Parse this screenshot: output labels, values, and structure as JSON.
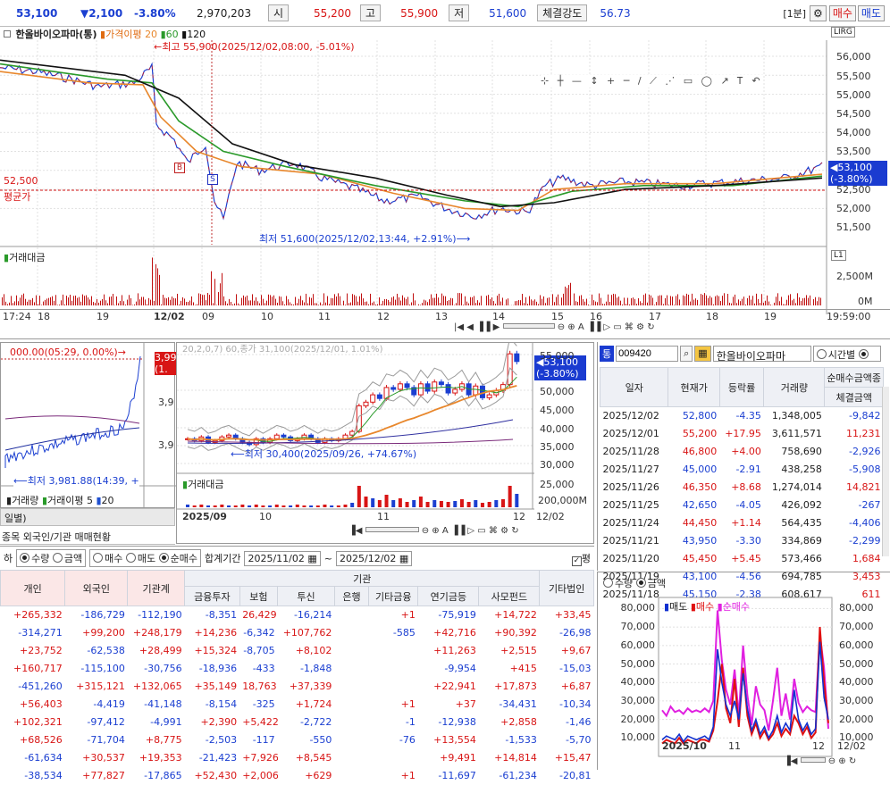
{
  "topbar": {
    "price": "53,100",
    "change": "▼2,100",
    "change_pct": "-3.80%",
    "volume": "2,970,203",
    "open_label": "시",
    "open": "55,200",
    "high_label": "고",
    "high": "55,900",
    "low_label": "저",
    "low": "51,600",
    "strength_label": "체결강도",
    "strength": "56.73",
    "interval": "[1분]",
    "buy_label": "매수",
    "sell_label": "매도"
  },
  "main_chart": {
    "legend_name": "한올바이오파마(통)",
    "legend_ma_label": "가격이평",
    "legend_ma": [
      "20",
      "60",
      "120"
    ],
    "legend_colors": [
      "#e8872c",
      "#2a9a2a",
      "#111111"
    ],
    "high_annot": "최고 55,900(2025/12/02,08:00, -5.01%)",
    "low_annot": "최저 51,600(2025/12/02,13:44, +2.91%)",
    "avg_price": "52,500",
    "avg_label": "평균가",
    "current_tag_price": "53,100",
    "current_tag_pct": "(-3.80%)",
    "y_ticks": [
      "56,000",
      "55,500",
      "55,000",
      "54,500",
      "54,000",
      "53,500",
      "52,500",
      "52,000",
      "51,500"
    ],
    "buy_marker": "B",
    "sell_marker": "S",
    "corner_tag": "LIRG"
  },
  "volume_chart": {
    "label": "거래대금",
    "y_ticks": [
      "2,500M",
      "0M"
    ],
    "corner_tag": "L1"
  },
  "time_axis": {
    "labels": [
      "17:24",
      "18",
      "19",
      "12/02",
      "09",
      "10",
      "11",
      "12",
      "13",
      "14",
      "15",
      "16",
      "17",
      "18",
      "19",
      "19:59:00"
    ]
  },
  "toolbar_icons": [
    "pointer-icon",
    "crosshair-icon",
    "horizontal-line-icon",
    "vertical-line-icon",
    "plus-icon",
    "minus-icon",
    "trend-line-icon",
    "fibonacci-icon",
    "channel-icon",
    "rectangle-icon",
    "ellipse-icon",
    "arrow-icon",
    "text-icon",
    "undo-icon"
  ],
  "index_chart": {
    "high_annot": "000.00(05:29, 0.00%)",
    "low_annot": "최저 3,981.88(14:39, +",
    "tag_top": "3,99",
    "tag_sub": "(1.",
    "y_ticks": [
      "3,9",
      "3,9"
    ],
    "vol_label": "거래량",
    "vol_ma_label": "거래이평",
    "vol_ma": [
      "5",
      "20"
    ],
    "tab_label": "일별)",
    "sub_tab": "종목 외국인/기관 매매현황"
  },
  "daily_chart": {
    "header_text": "20,2,0,7) 60,종가 31,100(2025/12/01, 1.01%)",
    "low_annot": "최저 30,400(2025/09/26, +74.67%)",
    "tag_price": "53,100",
    "tag_pct": "(-3.80%)",
    "y_ticks": [
      "55,000",
      "50,000",
      "45,000",
      "40,000",
      "35,000",
      "30,000",
      "25,000"
    ],
    "vol_label": "거래대금",
    "vol_tick": "200,000M",
    "x_labels": [
      "2025/09",
      "10",
      "11",
      "12",
      "12/02"
    ],
    "candle_closes": [
      32000,
      31500,
      32500,
      31000,
      31500,
      32500,
      33000,
      32000,
      31000,
      30400,
      32000,
      31000,
      32000,
      33000,
      32500,
      31500,
      32000,
      33000,
      32000,
      31000,
      32000,
      31500,
      32000,
      33000,
      34000,
      41000,
      42000,
      44000,
      43000,
      46000,
      45500,
      47000,
      46000,
      44000,
      47000,
      45000,
      47500,
      46800,
      44500,
      45500,
      47000,
      44000,
      46400,
      43200,
      44000,
      45200,
      46800,
      55200,
      53100
    ],
    "volume_heights": [
      3,
      2,
      3,
      2,
      2,
      3,
      2,
      2,
      3,
      2,
      3,
      2,
      2,
      3,
      2,
      2,
      3,
      2,
      2,
      2,
      3,
      2,
      2,
      3,
      5,
      24,
      12,
      10,
      8,
      14,
      8,
      10,
      6,
      8,
      12,
      6,
      8,
      7,
      6,
      7,
      9,
      6,
      8,
      5,
      6,
      8,
      9,
      24,
      15
    ]
  },
  "quote_panel": {
    "code": "009420",
    "name": "한올바이오파마",
    "radio_time": "시간별",
    "columns": [
      "일자",
      "현재가",
      "등락률",
      "거래량",
      "순매수",
      "금액종"
    ],
    "sub_column": "체결금액",
    "rows": [
      [
        "2025/12/02",
        "52,800",
        "-4.35",
        "1,348,005",
        "-9,842"
      ],
      [
        "2025/12/01",
        "55,200",
        "+17.95",
        "3,611,571",
        "11,231"
      ],
      [
        "2025/11/28",
        "46,800",
        "+4.00",
        "758,690",
        "-2,926"
      ],
      [
        "2025/11/27",
        "45,000",
        "-2.91",
        "438,258",
        "-5,908"
      ],
      [
        "2025/11/26",
        "46,350",
        "+8.68",
        "1,274,014",
        "14,821"
      ],
      [
        "2025/11/25",
        "42,650",
        "-4.05",
        "426,092",
        "-267"
      ],
      [
        "2025/11/24",
        "44,450",
        "+1.14",
        "564,435",
        "-4,406"
      ],
      [
        "2025/11/21",
        "43,950",
        "-3.30",
        "334,869",
        "-2,299"
      ],
      [
        "2025/11/20",
        "45,450",
        "+5.45",
        "573,466",
        "1,684"
      ],
      [
        "2025/11/19",
        "43,100",
        "-4.56",
        "694,785",
        "3,453"
      ],
      [
        "2025/11/18",
        "45,150",
        "-2.38",
        "608,617",
        "611"
      ]
    ]
  },
  "flow_chart": {
    "radio_qty": "수량",
    "radio_amt": "금액",
    "legend": [
      "매도",
      "매수",
      "순매수"
    ],
    "legend_colors": [
      "#1030d0",
      "#e01010",
      "#e020e0"
    ],
    "y_ticks": [
      "80,000",
      "70,000",
      "60,000",
      "50,000",
      "40,000",
      "30,000",
      "20,000",
      "10,000"
    ],
    "x_labels": [
      "2025/10",
      "11",
      "12",
      "12/02"
    ],
    "sell_series": [
      9000,
      11000,
      10000,
      9000,
      12000,
      8000,
      11000,
      10000,
      9000,
      10000,
      11000,
      9000,
      16000,
      58000,
      40000,
      28000,
      22000,
      30000,
      20000,
      45000,
      26000,
      14000,
      20000,
      12000,
      16000,
      10000,
      14000,
      22000,
      13000,
      18000,
      14000,
      36000,
      20000,
      14000,
      18000,
      12000,
      15000,
      62000,
      32000,
      20000
    ],
    "buy_series": [
      7000,
      9000,
      8000,
      7000,
      10000,
      7000,
      9000,
      8000,
      7000,
      9000,
      9000,
      8000,
      14000,
      30000,
      50000,
      26000,
      18000,
      42000,
      16000,
      48000,
      22000,
      12000,
      18000,
      10000,
      14000,
      9000,
      12000,
      18000,
      11000,
      15000,
      12000,
      22000,
      18000,
      12000,
      16000,
      10000,
      13000,
      70000,
      40000,
      18000
    ],
    "net_series": [
      25000,
      22000,
      27000,
      24000,
      25000,
      23000,
      26000,
      24000,
      25000,
      24000,
      26000,
      24000,
      30000,
      79000,
      52000,
      36000,
      28000,
      47000,
      22000,
      60000,
      33000,
      17000,
      38000,
      28000,
      25000,
      14000,
      30000,
      48000,
      22000,
      34000,
      20000,
      42000,
      29000,
      24000,
      27000,
      25000,
      24000,
      66000,
      48000,
      15000
    ]
  },
  "investor_table": {
    "controls": {
      "radio1": "수량",
      "radio2": "금액",
      "radio3": "매수",
      "radio4": "매도",
      "radio5": "순매수",
      "period_label": "합계기간",
      "date_from": "2025/11/02",
      "tilde": "~",
      "date_to": "2025/12/02",
      "check_label": "평"
    },
    "group_header": "기관",
    "columns": [
      "개인",
      "외국인",
      "기관계",
      "금융투자",
      "보험",
      "투신",
      "은행",
      "기타금융",
      "연기금등",
      "사모펀드",
      "기타법인"
    ],
    "rows": [
      [
        "+265,332",
        "-186,729",
        "-112,190",
        "-8,351",
        "26,429",
        "-16,214",
        "",
        "+1",
        "-75,919",
        "+14,722",
        "+33,45"
      ],
      [
        "-314,271",
        "+99,200",
        "+248,179",
        "+14,236",
        "-6,342",
        "+107,762",
        "",
        "-585",
        "+42,716",
        "+90,392",
        "-26,98"
      ],
      [
        "+23,752",
        "-62,538",
        "+28,499",
        "+15,324",
        "-8,705",
        "+8,102",
        "",
        "",
        "+11,263",
        "+2,515",
        "+9,67"
      ],
      [
        "+160,717",
        "-115,100",
        "-30,756",
        "-18,936",
        "-433",
        "-1,848",
        "",
        "",
        "-9,954",
        "+415",
        "-15,03"
      ],
      [
        "-451,260",
        "+315,121",
        "+132,065",
        "+35,149",
        "18,763",
        "+37,339",
        "",
        "",
        "+22,941",
        "+17,873",
        "+6,87"
      ],
      [
        "+56,403",
        "-4,419",
        "-41,148",
        "-8,154",
        "-325",
        "+1,724",
        "",
        "+1",
        "+37",
        "-34,431",
        "-10,34"
      ],
      [
        "+102,321",
        "-97,412",
        "-4,991",
        "+2,390",
        "+5,422",
        "-2,722",
        "",
        "-1",
        "-12,938",
        "+2,858",
        "-1,46"
      ],
      [
        "+68,526",
        "-71,704",
        "+8,775",
        "-2,503",
        "-117",
        "-550",
        "",
        "-76",
        "+13,554",
        "-1,533",
        "-5,70"
      ],
      [
        "-61,634",
        "+30,537",
        "+19,353",
        "-21,423",
        "+7,926",
        "+8,545",
        "",
        "",
        "+9,491",
        "+14,814",
        "+15,47"
      ],
      [
        "-38,534",
        "+77,827",
        "-17,865",
        "+52,430",
        "+2,006",
        "+629",
        "",
        "+1",
        "-11,697",
        "-61,234",
        "-20,81"
      ]
    ]
  }
}
